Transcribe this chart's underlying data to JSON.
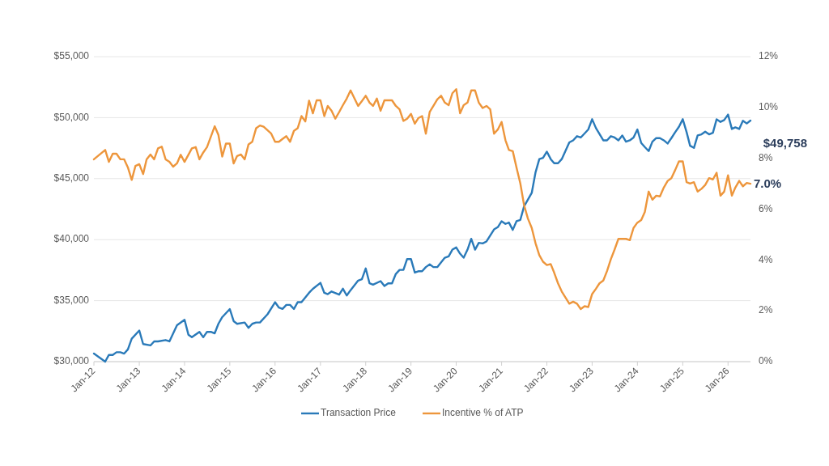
{
  "chart_data": {
    "type": "line",
    "xlim": [
      "2012-01",
      "2026-07"
    ],
    "xticks": [
      {
        "value": "2012-01",
        "label": "Jan-12"
      },
      {
        "value": "2013-01",
        "label": "Jan-13"
      },
      {
        "value": "2014-01",
        "label": "Jan-14"
      },
      {
        "value": "2015-01",
        "label": "Jan-15"
      },
      {
        "value": "2016-01",
        "label": "Jan-16"
      },
      {
        "value": "2017-01",
        "label": "Jan-17"
      },
      {
        "value": "2018-01",
        "label": "Jan-18"
      },
      {
        "value": "2019-01",
        "label": "Jan-19"
      },
      {
        "value": "2020-01",
        "label": "Jan-20"
      },
      {
        "value": "2021-01",
        "label": "Jan-21"
      },
      {
        "value": "2022-01",
        "label": "Jan-22"
      },
      {
        "value": "2023-01",
        "label": "Jan-23"
      },
      {
        "value": "2024-01",
        "label": "Jan-24"
      },
      {
        "value": "2025-01",
        "label": "Jan-25"
      },
      {
        "value": "2026-01",
        "label": "Jan-26"
      }
    ],
    "ylim": [
      30000,
      55000
    ],
    "yticks": [
      {
        "value": 30000,
        "label": "$30,000"
      },
      {
        "value": 35000,
        "label": "$35,000"
      },
      {
        "value": 40000,
        "label": "$40,000"
      },
      {
        "value": 45000,
        "label": "$45,000"
      },
      {
        "value": 50000,
        "label": "$50,000"
      },
      {
        "value": 55000,
        "label": "$55,000"
      }
    ],
    "y2lim": [
      0,
      12
    ],
    "y2ticks": [
      {
        "value": 0,
        "label": "0%"
      },
      {
        "value": 2,
        "label": "2%"
      },
      {
        "value": 4,
        "label": "4%"
      },
      {
        "value": 6,
        "label": "6%"
      },
      {
        "value": 8,
        "label": "8%"
      },
      {
        "value": 10,
        "label": "10%"
      },
      {
        "value": 12,
        "label": "12%"
      }
    ],
    "grid": "y",
    "legend": "bottom",
    "line_style": "solid",
    "annotations": [
      "$49,758",
      "7.0%"
    ],
    "series": [
      {
        "name": "Transaction Price",
        "color": "#2a7ab9",
        "x": [
          "2012-01",
          "2012-04",
          "2012-05",
          "2012-06",
          "2012-07",
          "2012-08",
          "2012-09",
          "2012-10",
          "2012-11",
          "2013-01",
          "2013-02",
          "2013-04",
          "2013-05",
          "2013-06",
          "2013-08",
          "2013-09",
          "2013-11",
          "2014-01",
          "2014-02",
          "2014-03",
          "2014-05",
          "2014-06",
          "2014-07",
          "2014-08",
          "2014-09",
          "2014-10",
          "2014-11",
          "2015-01",
          "2015-02",
          "2015-03",
          "2015-05",
          "2015-06",
          "2015-07",
          "2015-08",
          "2015-09",
          "2015-11",
          "2016-01",
          "2016-02",
          "2016-03",
          "2016-04",
          "2016-05",
          "2016-06",
          "2016-07",
          "2016-08",
          "2016-10",
          "2016-11",
          "2017-01",
          "2017-02",
          "2017-03",
          "2017-04",
          "2017-06",
          "2017-07",
          "2017-08",
          "2017-09",
          "2017-11",
          "2017-12",
          "2018-01",
          "2018-02",
          "2018-03",
          "2018-05",
          "2018-06",
          "2018-07",
          "2018-08",
          "2018-09",
          "2018-10",
          "2018-11",
          "2018-12",
          "2019-01",
          "2019-02",
          "2019-03",
          "2019-04",
          "2019-05",
          "2019-06",
          "2019-07",
          "2019-08",
          "2019-10",
          "2019-11",
          "2019-12",
          "2020-01",
          "2020-02",
          "2020-03",
          "2020-04",
          "2020-05",
          "2020-06",
          "2020-07",
          "2020-08",
          "2020-09",
          "2020-11",
          "2020-12",
          "2021-01",
          "2021-02",
          "2021-03",
          "2021-04",
          "2021-05",
          "2021-06",
          "2021-07",
          "2021-09",
          "2021-10",
          "2021-11",
          "2021-12",
          "2022-01",
          "2022-02",
          "2022-03",
          "2022-04",
          "2022-05",
          "2022-07",
          "2022-08",
          "2022-09",
          "2022-10",
          "2022-11",
          "2022-12",
          "2023-01",
          "2023-02",
          "2023-04",
          "2023-05",
          "2023-06",
          "2023-07",
          "2023-08",
          "2023-09",
          "2023-10",
          "2023-11",
          "2023-12",
          "2024-01",
          "2024-02",
          "2024-03",
          "2024-04",
          "2024-05",
          "2024-06",
          "2024-07",
          "2024-08",
          "2024-09",
          "2024-10",
          "2024-11",
          "2024-12",
          "2025-01",
          "2025-02",
          "2025-03",
          "2025-04",
          "2025-05",
          "2025-06",
          "2025-07",
          "2025-08",
          "2025-09",
          "2025-10",
          "2025-11",
          "2025-12",
          "2026-01",
          "2026-02",
          "2026-03",
          "2026-04",
          "2026-05",
          "2026-06",
          "2026-07"
        ],
        "values": [
          30660,
          30000,
          30550,
          30550,
          30770,
          30770,
          30660,
          31000,
          31880,
          32550,
          31440,
          31330,
          31660,
          31660,
          31770,
          31660,
          32990,
          33430,
          32210,
          32000,
          32440,
          32000,
          32440,
          32440,
          32320,
          33100,
          33650,
          34310,
          33320,
          33100,
          33210,
          32770,
          33100,
          33210,
          33210,
          33880,
          34870,
          34430,
          34320,
          34650,
          34650,
          34320,
          34870,
          34870,
          35640,
          35970,
          36460,
          35640,
          35530,
          35750,
          35490,
          35980,
          35420,
          35860,
          36640,
          36750,
          37640,
          36420,
          36310,
          36600,
          36200,
          36420,
          36420,
          37190,
          37520,
          37520,
          38410,
          38410,
          37300,
          37410,
          37410,
          37750,
          37970,
          37750,
          37750,
          38520,
          38630,
          39180,
          39360,
          38850,
          38520,
          39180,
          40070,
          39180,
          39740,
          39690,
          39850,
          40840,
          41020,
          41510,
          41290,
          41400,
          40800,
          41510,
          41620,
          42720,
          43830,
          45490,
          46600,
          46700,
          47210,
          46600,
          46260,
          46260,
          46600,
          47970,
          48140,
          48480,
          48370,
          48700,
          49030,
          49870,
          49140,
          48140,
          48140,
          48480,
          48370,
          48140,
          48540,
          48030,
          48140,
          48370,
          49030,
          47920,
          47590,
          47260,
          48030,
          48320,
          48320,
          48140,
          47880,
          48320,
          48810,
          49250,
          49870,
          48810,
          47700,
          47520,
          48540,
          48630,
          48850,
          48630,
          48760,
          49870,
          49650,
          49800,
          50250,
          49070,
          49200,
          49070,
          49740,
          49520,
          49758
        ]
      },
      {
        "name": "Incentive % of ATP",
        "color": "#ed963c",
        "axis": "y2",
        "x": [
          "2012-01",
          "2012-04",
          "2012-05",
          "2012-06",
          "2012-07",
          "2012-08",
          "2012-09",
          "2012-10",
          "2012-11",
          "2012-12",
          "2013-01",
          "2013-02",
          "2013-03",
          "2013-04",
          "2013-05",
          "2013-06",
          "2013-07",
          "2013-08",
          "2013-09",
          "2013-10",
          "2013-11",
          "2013-12",
          "2014-01",
          "2014-03",
          "2014-04",
          "2014-05",
          "2014-06",
          "2014-07",
          "2014-09",
          "2014-10",
          "2014-11",
          "2014-12",
          "2015-01",
          "2015-02",
          "2015-03",
          "2015-04",
          "2015-05",
          "2015-06",
          "2015-07",
          "2015-08",
          "2015-09",
          "2015-10",
          "2015-12",
          "2016-01",
          "2016-02",
          "2016-03",
          "2016-04",
          "2016-05",
          "2016-06",
          "2016-07",
          "2016-08",
          "2016-09",
          "2016-10",
          "2016-11",
          "2016-12",
          "2017-01",
          "2017-02",
          "2017-03",
          "2017-04",
          "2017-05",
          "2017-06",
          "2017-07",
          "2017-08",
          "2017-09",
          "2017-11",
          "2017-12",
          "2018-01",
          "2018-02",
          "2018-03",
          "2018-04",
          "2018-05",
          "2018-06",
          "2018-08",
          "2018-09",
          "2018-10",
          "2018-11",
          "2018-12",
          "2019-01",
          "2019-02",
          "2019-03",
          "2019-04",
          "2019-05",
          "2019-06",
          "2019-07",
          "2019-08",
          "2019-09",
          "2019-10",
          "2019-11",
          "2019-12",
          "2020-01",
          "2020-02",
          "2020-03",
          "2020-04",
          "2020-05",
          "2020-06",
          "2020-07",
          "2020-08",
          "2020-09",
          "2020-10",
          "2020-11",
          "2020-12",
          "2021-01",
          "2021-02",
          "2021-03",
          "2021-04",
          "2021-05",
          "2021-06",
          "2021-07",
          "2021-08",
          "2021-09",
          "2021-10",
          "2021-11",
          "2021-12",
          "2022-01",
          "2022-02",
          "2022-03",
          "2022-04",
          "2022-05",
          "2022-07",
          "2022-08",
          "2022-09",
          "2022-10",
          "2022-11",
          "2022-12",
          "2023-01",
          "2023-02",
          "2023-03",
          "2023-04",
          "2023-05",
          "2023-06",
          "2023-07",
          "2023-08",
          "2023-10",
          "2023-11",
          "2023-12",
          "2024-01",
          "2024-02",
          "2024-03",
          "2024-04",
          "2024-05",
          "2024-06",
          "2024-07",
          "2024-08",
          "2024-09",
          "2024-10",
          "2024-11",
          "2024-12",
          "2025-01",
          "2025-02",
          "2025-03",
          "2025-04",
          "2025-05",
          "2025-06",
          "2025-07",
          "2025-08",
          "2025-09",
          "2025-10",
          "2025-11",
          "2025-12",
          "2026-01",
          "2026-02",
          "2026-03",
          "2026-04",
          "2026-05",
          "2026-06",
          "2026-07"
        ],
        "values": [
          7.96,
          8.33,
          7.86,
          8.18,
          8.18,
          7.96,
          7.96,
          7.64,
          7.15,
          7.7,
          7.77,
          7.38,
          7.96,
          8.15,
          7.96,
          8.39,
          8.46,
          7.96,
          7.86,
          7.67,
          7.8,
          8.14,
          7.86,
          8.39,
          8.44,
          7.96,
          8.23,
          8.44,
          9.26,
          8.92,
          8.07,
          8.58,
          8.58,
          7.8,
          8.09,
          8.15,
          7.96,
          8.55,
          8.65,
          9.18,
          9.29,
          9.24,
          8.97,
          8.65,
          8.65,
          8.76,
          8.87,
          8.65,
          9.08,
          9.18,
          9.66,
          9.45,
          10.27,
          9.77,
          10.28,
          10.28,
          9.66,
          10.06,
          9.87,
          9.56,
          9.82,
          10.09,
          10.35,
          10.67,
          10.06,
          10.25,
          10.46,
          10.19,
          10.06,
          10.35,
          9.87,
          10.28,
          10.28,
          10.06,
          9.93,
          9.47,
          9.56,
          9.75,
          9.36,
          9.58,
          9.66,
          8.97,
          9.82,
          10.06,
          10.32,
          10.46,
          10.19,
          10.09,
          10.56,
          10.72,
          9.77,
          10.09,
          10.19,
          10.67,
          10.67,
          10.19,
          9.98,
          10.06,
          9.93,
          8.97,
          9.13,
          9.43,
          8.71,
          8.33,
          8.28,
          7.64,
          7.01,
          6.16,
          5.63,
          5.26,
          4.67,
          4.19,
          3.93,
          3.8,
          3.84,
          3.5,
          3.08,
          2.76,
          2.28,
          2.36,
          2.28,
          2.07,
          2.18,
          2.15,
          2.66,
          2.87,
          3.08,
          3.19,
          3.56,
          4.03,
          4.41,
          4.83,
          4.83,
          4.78,
          5.26,
          5.47,
          5.57,
          5.89,
          6.69,
          6.37,
          6.53,
          6.5,
          6.85,
          7.11,
          7.22,
          7.54,
          7.88,
          7.88,
          7.06,
          7.01,
          7.06,
          6.69,
          6.8,
          6.95,
          7.22,
          7.17,
          7.43,
          6.53,
          6.69,
          7.33,
          6.53,
          6.85,
          7.11,
          6.9,
          7.03,
          7.0
        ]
      }
    ]
  }
}
